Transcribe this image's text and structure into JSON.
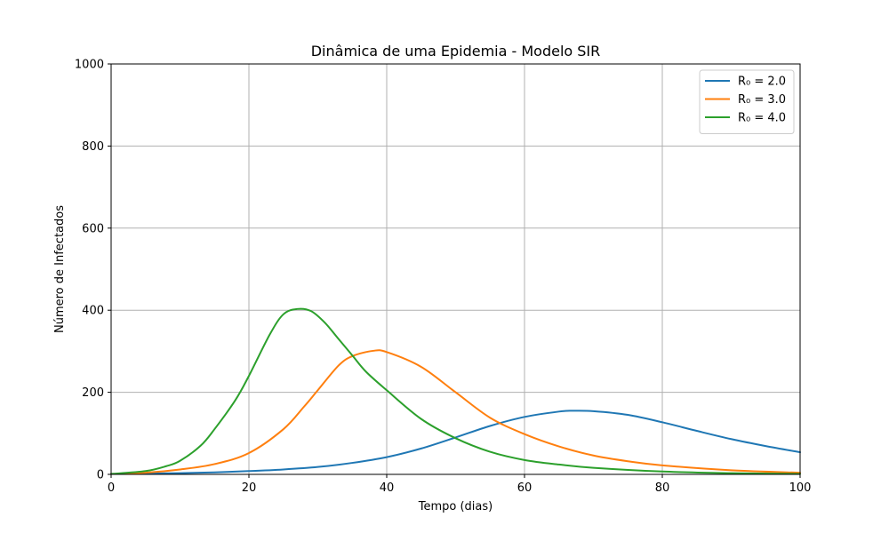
{
  "chart_data": {
    "type": "line",
    "title": "Dinâmica de uma Epidemia - Modelo SIR",
    "xlabel": "Tempo (dias)",
    "ylabel": "Número de Infectados",
    "xlim": [
      0,
      100
    ],
    "ylim": [
      0,
      1000
    ],
    "xticks": [
      0,
      20,
      40,
      60,
      80,
      100
    ],
    "yticks": [
      0,
      200,
      400,
      600,
      800,
      1000
    ],
    "grid": true,
    "legend_position": "top-right",
    "series": [
      {
        "name": "R₀ = 2.0",
        "color": "#1f77b4",
        "x": [
          0,
          5,
          10,
          15,
          20,
          25,
          30,
          35,
          40,
          45,
          50,
          55,
          60,
          65,
          67,
          70,
          75,
          80,
          85,
          90,
          95,
          100
        ],
        "y": [
          1,
          2,
          3,
          5,
          8,
          12,
          18,
          28,
          42,
          63,
          90,
          118,
          140,
          153,
          155,
          154,
          145,
          127,
          106,
          86,
          69,
          54
        ]
      },
      {
        "name": "R₀ = 3.0",
        "color": "#ff7f0e",
        "x": [
          0,
          5,
          10,
          15,
          20,
          25,
          28,
          30,
          33,
          35,
          38,
          40,
          45,
          50,
          55,
          60,
          65,
          70,
          75,
          80,
          90,
          100
        ],
        "y": [
          1,
          4,
          12,
          25,
          52,
          110,
          165,
          205,
          265,
          288,
          301,
          298,
          262,
          200,
          138,
          98,
          68,
          46,
          32,
          22,
          10,
          4
        ]
      },
      {
        "name": "R₀ = 4.0",
        "color": "#2ca02c",
        "x": [
          0,
          5,
          8,
          10,
          13,
          15,
          18,
          20,
          23,
          25,
          27,
          29,
          31,
          33,
          35,
          37,
          40,
          45,
          50,
          55,
          60,
          65,
          70,
          80,
          90,
          100
        ],
        "y": [
          1,
          8,
          20,
          33,
          70,
          110,
          180,
          240,
          340,
          390,
          403,
          398,
          370,
          330,
          290,
          250,
          205,
          135,
          88,
          55,
          35,
          24,
          16,
          7,
          3,
          1
        ]
      }
    ]
  }
}
